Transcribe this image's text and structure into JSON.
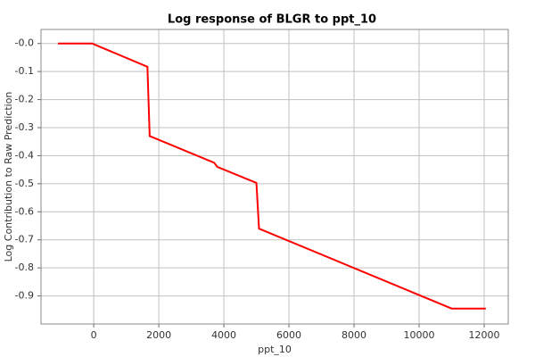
{
  "chart_data": {
    "type": "line",
    "title": "Log response of BLGR to ppt_10",
    "xlabel": "ppt_10",
    "ylabel": "Log Contribution to Raw Prediction",
    "x": [
      -1100,
      -50,
      1650,
      1720,
      3700,
      3800,
      5000,
      5080,
      11000,
      12050
    ],
    "series": [
      {
        "color": "#ff0000",
        "values": [
          0,
          0,
          -0.083,
          -0.33,
          -0.425,
          -0.44,
          -0.497,
          -0.66,
          -0.945,
          -0.945
        ]
      }
    ],
    "xlim": [
      -1620,
      12740
    ],
    "xticks": [
      0,
      2000,
      4000,
      6000,
      8000,
      10000,
      12000
    ],
    "ylim": [
      -1.0,
      0.05
    ],
    "yticks": [
      {
        "value": 0,
        "label": "-0.0"
      },
      -0.1,
      -0.2,
      -0.3,
      -0.4,
      -0.5,
      -0.6,
      -0.7,
      -0.8,
      -0.9
    ],
    "grid": true
  }
}
